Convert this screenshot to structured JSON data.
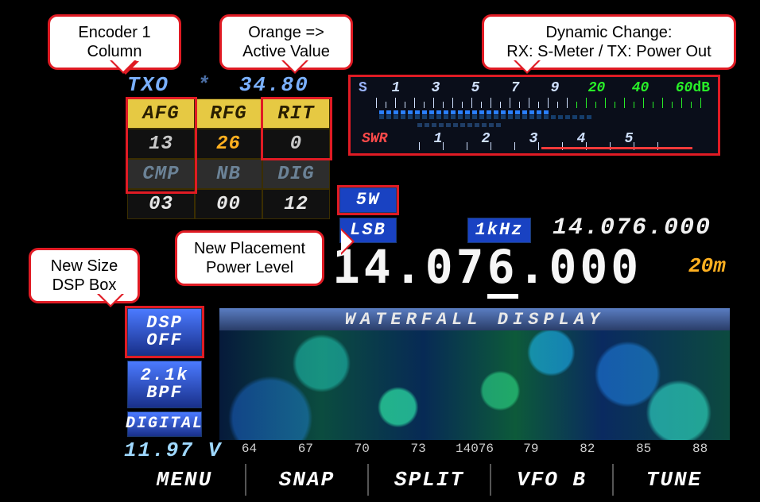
{
  "callouts": {
    "encoder1": {
      "line1": "Encoder 1",
      "line2": "Column"
    },
    "activeval": {
      "line1": "Orange =>",
      "line2": "Active Value"
    },
    "dynamic": {
      "line1": "Dynamic Change:",
      "line2": "RX: S-Meter / TX: Power Out"
    },
    "dspbox": {
      "line1": "New Size",
      "line2": "DSP Box"
    },
    "powerlevel": {
      "line1": "New Placement",
      "line2": "Power Level"
    }
  },
  "txo": {
    "label": "TXO",
    "star": "*",
    "val": "34.80"
  },
  "encoder": {
    "row1": {
      "c1_label": "AFG",
      "c1_val": "13",
      "c2_label": "RFG",
      "c2_val": "26",
      "c3_label": "RIT",
      "c3_val": "0"
    },
    "row2": {
      "c1_label": "CMP",
      "c1_val": "03",
      "c2_label": "NB",
      "c2_val": "00",
      "c3_label": "DIG",
      "c3_val": "12"
    }
  },
  "meter": {
    "s_label": "S",
    "nums": [
      "1",
      "3",
      "5",
      "7",
      "9"
    ],
    "nums_green": [
      "20",
      "40",
      "60"
    ],
    "db": "dB",
    "blue_segments": 24,
    "peak_segments": 30
  },
  "swr": {
    "label": "SWR",
    "nums": [
      "1",
      "2",
      "3",
      "4",
      "5"
    ],
    "segments": 12
  },
  "power": "5W",
  "mode": "LSB",
  "tune_step": "1kHz",
  "freq_secondary": "14.076.000",
  "band": "20m",
  "freq_main": {
    "p1": "14.07",
    "under": "6",
    "p3": ".000"
  },
  "dsp": {
    "l1": "DSP",
    "l2": "OFF"
  },
  "bpf": {
    "l1": "2.1k",
    "l2": "BPF"
  },
  "digital": "DIGITAL",
  "voltage": "11.97 V",
  "waterfall": {
    "title": "WATERFALL DISPLAY",
    "scale": [
      "64",
      "67",
      "70",
      "73",
      "14076",
      "79",
      "82",
      "85",
      "88"
    ]
  },
  "menu": [
    "MENU",
    "SNAP",
    "SPLIT",
    "VFO B",
    "TUNE"
  ]
}
